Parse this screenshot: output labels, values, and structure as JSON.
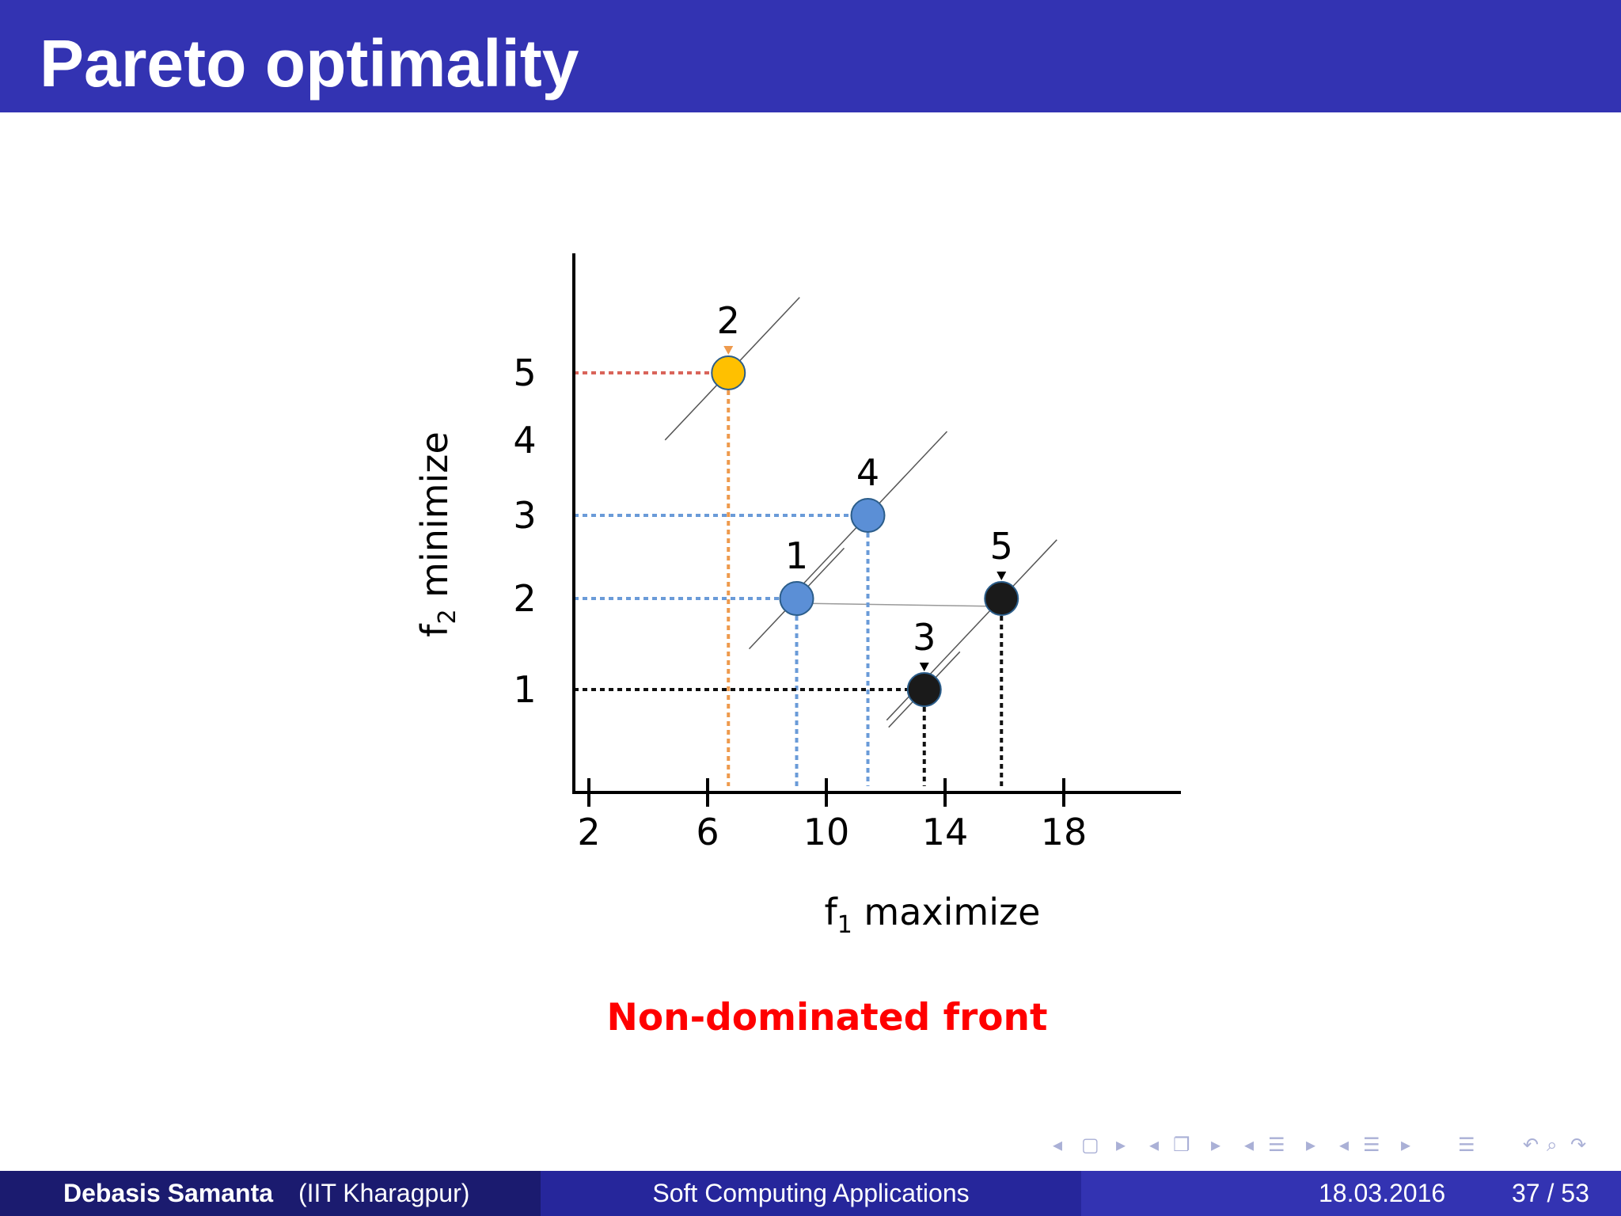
{
  "slide": {
    "title": "Pareto optimality",
    "caption": "Non-dominated front"
  },
  "footer": {
    "author": "Debasis Samanta",
    "institution": "(IIT Kharagpur)",
    "course": "Soft Computing Applications",
    "date": "18.03.2016",
    "page": "37 / 53"
  },
  "nav_icons": [
    "nav-prev-frame-icon",
    "nav-frame-icon",
    "nav-next-frame-icon",
    "nav-prev-subsection-icon",
    "nav-subsection-icon",
    "nav-next-subsection-icon",
    "nav-prev-section-icon",
    "nav-section-icon",
    "nav-next-section-icon",
    "nav-prev-doc-icon",
    "nav-doc-icon",
    "nav-next-doc-icon",
    "nav-list-icon",
    "nav-back-icon",
    "nav-search-icon",
    "nav-forward-icon"
  ],
  "chart_data": {
    "type": "scatter",
    "xlabel": "f1 maximize",
    "ylabel": "f2 minimize",
    "xticks": [
      2,
      6,
      10,
      14,
      18
    ],
    "yticks": [
      1,
      2,
      3,
      4,
      5
    ],
    "points": [
      {
        "label": "1",
        "x": 9,
        "y": 2,
        "color": "#5b8fd6"
      },
      {
        "label": "2",
        "x": 6.7,
        "y": 5,
        "color": "#ffc000"
      },
      {
        "label": "3",
        "x": 13.3,
        "y": 1,
        "color": "#1a1a1a"
      },
      {
        "label": "4",
        "x": 11.4,
        "y": 3,
        "color": "#5b8fd6"
      },
      {
        "label": "5",
        "x": 15.9,
        "y": 2,
        "color": "#1a1a1a"
      }
    ],
    "grid": false
  }
}
